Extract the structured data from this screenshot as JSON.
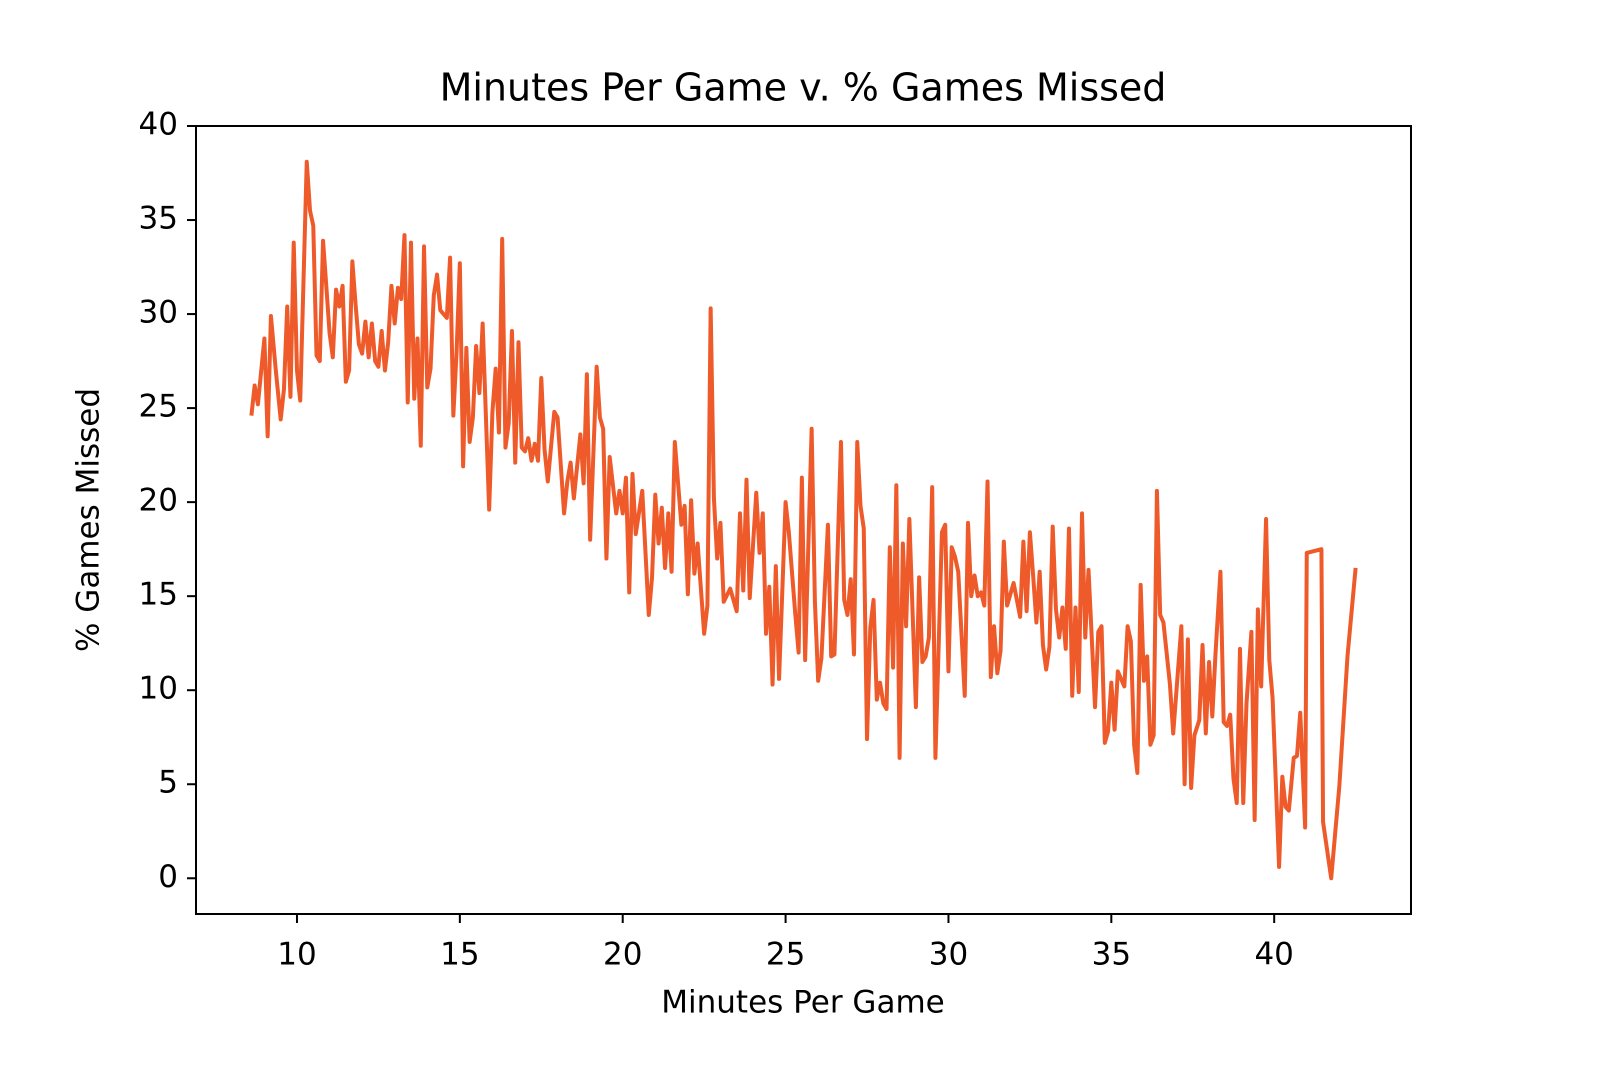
{
  "chart_data": {
    "type": "line",
    "title": "Minutes Per Game v. % Games Missed",
    "x_label": "Minutes Per Game",
    "y_label": "% Games Missed",
    "x": [
      8.6,
      8.7,
      8.8,
      9.0,
      9.1,
      9.2,
      9.35,
      9.5,
      9.6,
      9.7,
      9.8,
      9.9,
      10.0,
      10.1,
      10.3,
      10.4,
      10.5,
      10.6,
      10.7,
      10.8,
      10.9,
      11.0,
      11.1,
      11.2,
      11.3,
      11.4,
      11.5,
      11.6,
      11.7,
      11.8,
      11.9,
      12.0,
      12.1,
      12.2,
      12.3,
      12.4,
      12.5,
      12.6,
      12.7,
      12.8,
      12.9,
      13.0,
      13.1,
      13.2,
      13.3,
      13.4,
      13.5,
      13.6,
      13.7,
      13.8,
      13.9,
      14.0,
      14.1,
      14.2,
      14.3,
      14.4,
      14.6,
      14.7,
      14.8,
      14.9,
      15.0,
      15.1,
      15.2,
      15.3,
      15.4,
      15.5,
      15.6,
      15.7,
      15.9,
      16.0,
      16.1,
      16.2,
      16.3,
      16.4,
      16.5,
      16.6,
      16.7,
      16.8,
      16.9,
      17.0,
      17.1,
      17.2,
      17.3,
      17.4,
      17.5,
      17.6,
      17.7,
      17.9,
      18.0,
      18.2,
      18.3,
      18.4,
      18.5,
      18.7,
      18.8,
      18.9,
      19.0,
      19.2,
      19.3,
      19.4,
      19.5,
      19.6,
      19.8,
      19.9,
      20.0,
      20.1,
      20.2,
      20.3,
      20.4,
      20.6,
      20.8,
      20.9,
      21.0,
      21.1,
      21.2,
      21.3,
      21.4,
      21.5,
      21.6,
      21.8,
      21.9,
      22.0,
      22.1,
      22.2,
      22.3,
      22.5,
      22.6,
      22.7,
      22.8,
      22.9,
      23.0,
      23.1,
      23.3,
      23.5,
      23.6,
      23.7,
      23.8,
      23.9,
      24.1,
      24.2,
      24.3,
      24.4,
      24.5,
      24.6,
      24.7,
      24.8,
      25.0,
      25.1,
      25.3,
      25.4,
      25.5,
      25.6,
      25.8,
      25.9,
      26.0,
      26.1,
      26.3,
      26.4,
      26.5,
      26.7,
      26.8,
      26.9,
      27.0,
      27.1,
      27.2,
      27.3,
      27.4,
      27.5,
      27.6,
      27.7,
      27.8,
      27.9,
      28.0,
      28.1,
      28.2,
      28.3,
      28.4,
      28.5,
      28.6,
      28.7,
      28.8,
      28.9,
      29.0,
      29.1,
      29.2,
      29.3,
      29.4,
      29.5,
      29.6,
      29.8,
      29.9,
      30.0,
      30.1,
      30.2,
      30.3,
      30.5,
      30.6,
      30.7,
      30.8,
      30.9,
      31.0,
      31.1,
      31.2,
      31.3,
      31.4,
      31.5,
      31.6,
      31.7,
      31.8,
      31.9,
      32.0,
      32.2,
      32.3,
      32.4,
      32.5,
      32.6,
      32.7,
      32.8,
      32.9,
      33.0,
      33.1,
      33.2,
      33.3,
      33.4,
      33.5,
      33.6,
      33.7,
      33.8,
      33.9,
      34.0,
      34.1,
      34.2,
      34.3,
      34.5,
      34.6,
      34.7,
      34.8,
      34.9,
      35.0,
      35.1,
      35.2,
      35.4,
      35.5,
      35.6,
      35.7,
      35.8,
      35.9,
      36.0,
      36.1,
      36.2,
      36.3,
      36.4,
      36.5,
      36.6,
      36.8,
      36.9,
      37.15,
      37.25,
      37.35,
      37.45,
      37.55,
      37.7,
      37.8,
      37.9,
      38.0,
      38.1,
      38.2,
      38.35,
      38.45,
      38.55,
      38.65,
      38.75,
      38.85,
      38.95,
      39.05,
      39.15,
      39.3,
      39.4,
      39.5,
      39.6,
      39.75,
      39.85,
      39.95,
      40.15,
      40.25,
      40.35,
      40.45,
      40.6,
      40.7,
      40.8,
      40.95,
      41.0,
      41.45,
      41.5,
      41.75,
      42.0,
      42.25,
      42.5
    ],
    "series": [
      {
        "color": "#ee5a29",
        "values": [
          24.6,
          26.2,
          25.2,
          28.7,
          23.5,
          29.9,
          27,
          24.4,
          26,
          30.4,
          25.6,
          33.8,
          27,
          25.4,
          38.1,
          35.5,
          34.7,
          27.8,
          27.5,
          33.9,
          31.5,
          29,
          27.7,
          31.3,
          30.4,
          31.5,
          26.4,
          27,
          32.8,
          30.5,
          28.4,
          27.9,
          29.6,
          27.7,
          29.5,
          27.5,
          27.2,
          29.1,
          27,
          28.5,
          31.5,
          29.5,
          31.4,
          30.8,
          34.2,
          25.3,
          33.8,
          25.5,
          28.7,
          23,
          33.6,
          26.1,
          27.1,
          31,
          32.1,
          30.2,
          29.8,
          33,
          24.6,
          28,
          32.7,
          21.9,
          28.2,
          23.2,
          24.5,
          28.3,
          25.8,
          29.5,
          19.6,
          24.8,
          27.1,
          23.7,
          34,
          22.9,
          24.2,
          29.1,
          22.1,
          28.5,
          22.9,
          22.7,
          23.4,
          22.2,
          23.1,
          22.2,
          26.6,
          22.8,
          21.1,
          24.8,
          24.5,
          19.4,
          21.1,
          22.1,
          20.2,
          23.6,
          21,
          26.8,
          18,
          27.2,
          24.5,
          23.9,
          17,
          22.4,
          19.4,
          20.6,
          19.4,
          21.3,
          15.2,
          21.5,
          18.3,
          20.6,
          14,
          16,
          20.4,
          17.8,
          19.7,
          16.5,
          19.4,
          16.3,
          23.2,
          18.8,
          19.8,
          15.1,
          20.1,
          16.2,
          17.8,
          13,
          14.5,
          30.3,
          20.2,
          17,
          18.9,
          14.7,
          15.4,
          14.2,
          19.4,
          15.3,
          21.2,
          14.9,
          20.5,
          17.3,
          19.4,
          13,
          15.5,
          10.3,
          16.6,
          10.6,
          20,
          18.4,
          14,
          12,
          21.3,
          11.6,
          23.9,
          14.7,
          10.5,
          11.7,
          18.8,
          11.8,
          11.9,
          23.2,
          14.8,
          14,
          15.9,
          11.9,
          23.2,
          19.8,
          18.6,
          7.4,
          13.3,
          14.8,
          9.5,
          10.4,
          9.3,
          9,
          17.6,
          11.2,
          20.9,
          6.4,
          17.8,
          13.4,
          19.1,
          14.1,
          9.1,
          16,
          11.5,
          11.8,
          12.8,
          20.8,
          6.4,
          18.4,
          18.8,
          11,
          17.6,
          17.1,
          16.3,
          9.7,
          18.9,
          15,
          16.1,
          15,
          15.2,
          14.5,
          21.1,
          10.7,
          13.4,
          10.9,
          12.1,
          17.9,
          14.5,
          15.1,
          15.7,
          13.9,
          17.9,
          14.2,
          18.4,
          16.1,
          13.6,
          16.3,
          12.4,
          11.1,
          12.3,
          18.7,
          14.3,
          12.8,
          14.4,
          12.2,
          18.6,
          9.7,
          14.4,
          9.9,
          19.4,
          12.8,
          16.4,
          9.1,
          13.1,
          13.4,
          7.2,
          7.8,
          10.4,
          7.9,
          11,
          10.2,
          13.4,
          12.6,
          7.1,
          5.6,
          15.6,
          10.5,
          11.8,
          7.1,
          7.6,
          20.6,
          14,
          13.6,
          10.3,
          7.7,
          13.4,
          5,
          12.7,
          4.8,
          7.6,
          8.4,
          12.4,
          7.7,
          11.5,
          8.6,
          12,
          16.3,
          8.3,
          8.1,
          8.7,
          5.3,
          4,
          12.2,
          4,
          9.3,
          13.1,
          3.1,
          14.3,
          10.2,
          19.1,
          11.6,
          9.6,
          0.6,
          5.4,
          3.8,
          3.6,
          6.4,
          6.5,
          8.8,
          2.7,
          17.3,
          17.5,
          3,
          0,
          4.9,
          11.8,
          16.5
        ]
      }
    ],
    "xlim": [
      6.9,
      44.2
    ],
    "ylim": [
      -1.9,
      40.0
    ],
    "xticks": [
      10,
      15,
      20,
      25,
      30,
      35,
      40
    ],
    "yticks": [
      0,
      5,
      10,
      15,
      20,
      25,
      30,
      35,
      40
    ]
  }
}
